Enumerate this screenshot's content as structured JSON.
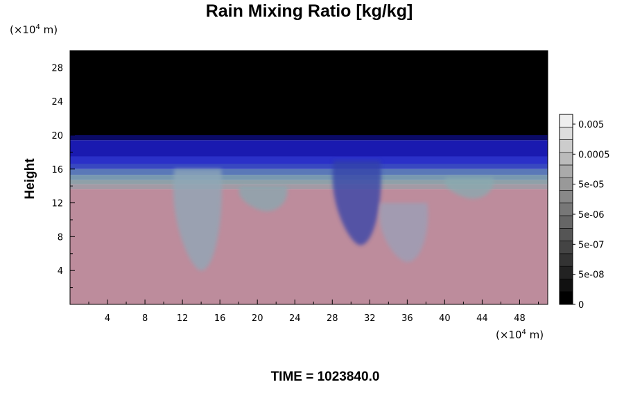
{
  "chart_data": {
    "type": "heatmap",
    "title": "Rain Mixing Ratio [kg/kg]",
    "ylabel": "Height",
    "x_unit": {
      "pre": "(×10",
      "exp": "4",
      "post": " m)"
    },
    "y_unit": {
      "pre": "(×10",
      "exp": "4",
      "post": " m)"
    },
    "xlim": [
      0,
      51
    ],
    "ylim": [
      0,
      30
    ],
    "x_ticks": [
      4,
      8,
      12,
      16,
      20,
      24,
      28,
      32,
      36,
      40,
      44,
      48
    ],
    "y_ticks": [
      4,
      8,
      12,
      16,
      20,
      24,
      28
    ],
    "x_minor_step": 2,
    "y_minor_step": 2,
    "colorbar": {
      "labels": [
        "0.005",
        "0.0005",
        "5e-05",
        "5e-06",
        "5e-07",
        "5e-08",
        "0"
      ],
      "levels": 14,
      "colors": [
        "#000000",
        "#111111",
        "#222222",
        "#333333",
        "#444444",
        "#555555",
        "#666666",
        "#777777",
        "#888888",
        "#999999",
        "#aaaaaa",
        "#bbbbbb",
        "#cccccc",
        "#dddddd",
        "#eeeeee"
      ]
    },
    "background_layers": [
      {
        "from": 20,
        "to": 30,
        "color": "#000000"
      },
      {
        "from": 19.4,
        "to": 20,
        "color": "#0a0a66"
      },
      {
        "from": 17.5,
        "to": 19.4,
        "color": "#1a1ab0"
      },
      {
        "from": 16.6,
        "to": 17.5,
        "color": "#2a30c8"
      },
      {
        "from": 16.0,
        "to": 16.6,
        "color": "#3848c0"
      },
      {
        "from": 15.3,
        "to": 16.0,
        "color": "#5a78b8"
      },
      {
        "from": 14.7,
        "to": 15.3,
        "color": "#7898b0"
      },
      {
        "from": 14.2,
        "to": 14.7,
        "color": "#8fa0a8"
      },
      {
        "from": 13.6,
        "to": 14.2,
        "color": "#a39aa5"
      },
      {
        "from": 0,
        "to": 13.6,
        "color": "#bd8c9c"
      }
    ],
    "plumes": [
      {
        "center_x": 14,
        "top": 16,
        "bottom": 4,
        "color": "#8fa8b8"
      },
      {
        "center_x": 31,
        "top": 17,
        "bottom": 7,
        "color": "#3040a8"
      },
      {
        "center_x": 36,
        "top": 12,
        "bottom": 5,
        "color": "#9aa0b8"
      },
      {
        "center_x": 21,
        "top": 14,
        "bottom": 11,
        "color": "#88a8b0"
      },
      {
        "center_x": 43,
        "top": 15,
        "bottom": 12.5,
        "color": "#88aab0"
      }
    ]
  },
  "footer": {
    "time_label": "TIME = 1023840.0"
  }
}
